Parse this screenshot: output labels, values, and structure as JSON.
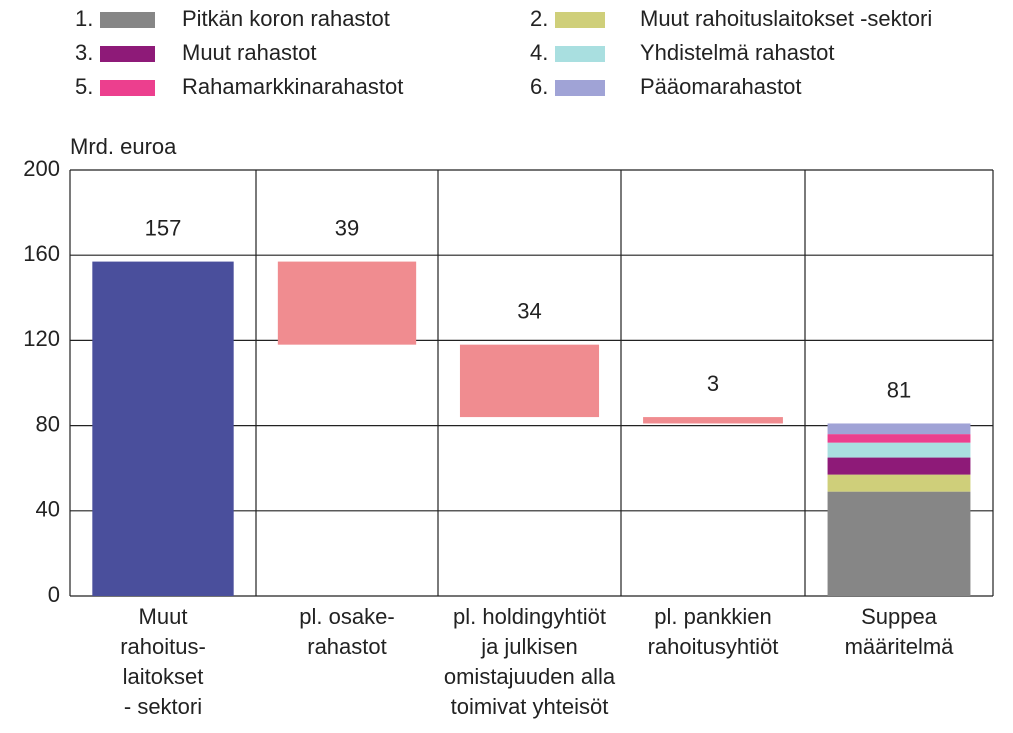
{
  "chart_data": {
    "type": "waterfall",
    "y_label": "Mrd. euroa",
    "categories": [
      [
        "Muut",
        "rahoitus-",
        "laitokset",
        "- sektori"
      ],
      [
        "pl. osake-",
        "rahastot"
      ],
      [
        "pl. holdingyhtiöt",
        "ja julkisen",
        "omistajuuden alla",
        "toimivat yhteisöt"
      ],
      [
        "pl. pankkien",
        "rahoitusyhtiöt"
      ],
      [
        "Suppea",
        "määritelmä"
      ]
    ],
    "values": [
      157,
      39,
      34,
      3,
      81
    ],
    "total_color": "#4a4f9c",
    "decrease_color": "#f08c90",
    "series": [
      {
        "number": "1.",
        "name": "Pitkän koron rahastot",
        "color": "#868686",
        "values": [
          null,
          null,
          null,
          null,
          49
        ]
      },
      {
        "number": "2.",
        "name": "Muut rahoituslaitokset -sektori",
        "color": "#cfcf7a",
        "values": [
          null,
          null,
          null,
          null,
          8
        ]
      },
      {
        "number": "3.",
        "name": "Muut rahastot",
        "color": "#8e1a78",
        "values": [
          null,
          null,
          null,
          null,
          8
        ]
      },
      {
        "number": "4.",
        "name": "Yhdistelmä rahastot",
        "color": "#a9dfe0",
        "values": [
          null,
          null,
          null,
          null,
          7
        ]
      },
      {
        "number": "5.",
        "name": "Rahamarkkinarahastot",
        "color": "#ec3f8e",
        "values": [
          null,
          null,
          null,
          null,
          4
        ]
      },
      {
        "number": "6.",
        "name": "Pääomarahastot",
        "color": "#a0a3d6",
        "values": [
          null,
          null,
          null,
          null,
          5
        ]
      }
    ],
    "ylim": [
      0,
      200
    ],
    "yticks": [
      0,
      40,
      80,
      120,
      160,
      200
    ],
    "grid": true
  }
}
